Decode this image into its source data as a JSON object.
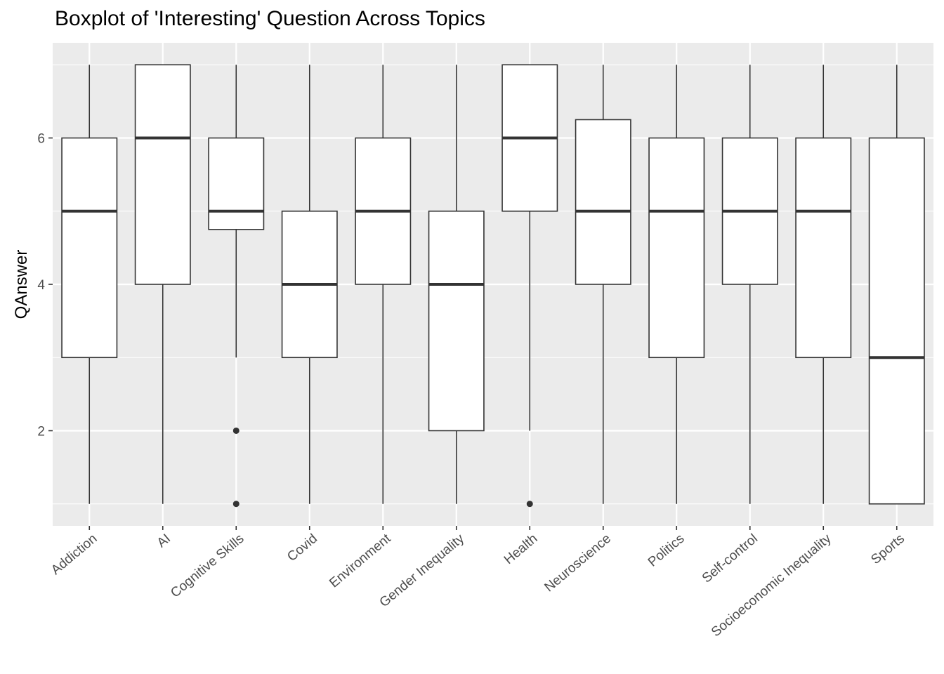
{
  "chart_data": {
    "type": "boxplot",
    "title": "Boxplot of 'Interesting' Question Across Topics",
    "xlabel": "",
    "ylabel": "QAnswer",
    "ylim": [
      0.7,
      7.3
    ],
    "yticks": [
      2,
      4,
      6
    ],
    "grid": true,
    "categories": [
      "Addiction",
      "AI",
      "Cognitive Skills",
      "Covid",
      "Environment",
      "Gender Inequality",
      "Health",
      "Neuroscience",
      "Politics",
      "Self-control",
      "Socioeconomic Inequality",
      "Sports"
    ],
    "boxes": [
      {
        "category": "Addiction",
        "whisker_low": 1,
        "q1": 3,
        "median": 5,
        "q3": 6,
        "whisker_high": 7,
        "outliers": []
      },
      {
        "category": "AI",
        "whisker_low": 1,
        "q1": 4,
        "median": 6,
        "q3": 7,
        "whisker_high": 7,
        "outliers": []
      },
      {
        "category": "Cognitive Skills",
        "whisker_low": 3,
        "q1": 4.75,
        "median": 5,
        "q3": 6,
        "whisker_high": 7,
        "outliers": [
          2,
          1
        ]
      },
      {
        "category": "Covid",
        "whisker_low": 1,
        "q1": 3,
        "median": 4,
        "q3": 5,
        "whisker_high": 7,
        "outliers": []
      },
      {
        "category": "Environment",
        "whisker_low": 1,
        "q1": 4,
        "median": 5,
        "q3": 6,
        "whisker_high": 7,
        "outliers": []
      },
      {
        "category": "Gender Inequality",
        "whisker_low": 1,
        "q1": 2,
        "median": 4,
        "q3": 5,
        "whisker_high": 7,
        "outliers": []
      },
      {
        "category": "Health",
        "whisker_low": 2,
        "q1": 5,
        "median": 6,
        "q3": 7,
        "whisker_high": 7,
        "outliers": [
          1
        ]
      },
      {
        "category": "Neuroscience",
        "whisker_low": 1,
        "q1": 4,
        "median": 5,
        "q3": 6.25,
        "whisker_high": 7,
        "outliers": []
      },
      {
        "category": "Politics",
        "whisker_low": 1,
        "q1": 3,
        "median": 5,
        "q3": 6,
        "whisker_high": 7,
        "outliers": []
      },
      {
        "category": "Self-control",
        "whisker_low": 1,
        "q1": 4,
        "median": 5,
        "q3": 6,
        "whisker_high": 7,
        "outliers": []
      },
      {
        "category": "Socioeconomic Inequality",
        "whisker_low": 1,
        "q1": 3,
        "median": 5,
        "q3": 6,
        "whisker_high": 7,
        "outliers": []
      },
      {
        "category": "Sports",
        "whisker_low": 1,
        "q1": 1,
        "median": 3,
        "q3": 6,
        "whisker_high": 7,
        "outliers": []
      }
    ],
    "colors": {
      "panel_background": "#ebebeb",
      "grid": "#ffffff",
      "box_fill": "#ffffff",
      "box_stroke": "#333333",
      "text": "#4d4d4d"
    }
  }
}
